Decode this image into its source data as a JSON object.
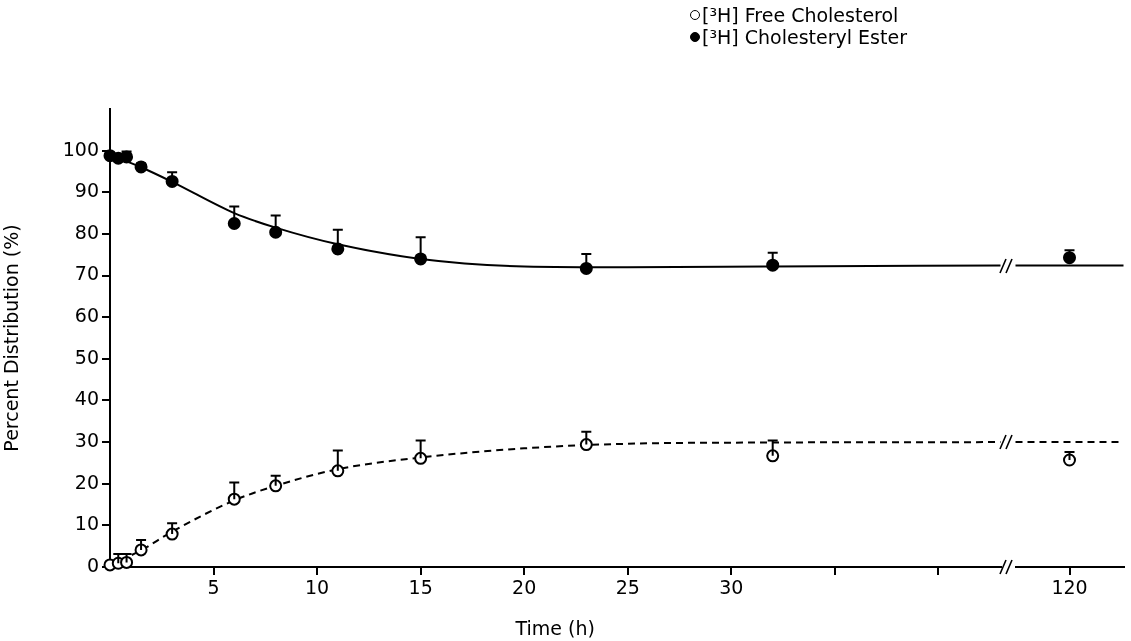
{
  "chart_data": [
    {
      "type": "scatter",
      "xlabel": "Time (h)",
      "ylabel": "Percent Distribution (%)",
      "xlim": [
        0,
        43
      ],
      "xticks": [
        5,
        10,
        15,
        20,
        25,
        30,
        {
          "value": 35,
          "label": null
        },
        {
          "value": 40,
          "label": null
        }
      ],
      "ylim": [
        0,
        110
      ],
      "yticks": [
        0,
        10,
        20,
        30,
        40,
        50,
        60,
        70,
        80,
        90,
        100
      ],
      "grid": false,
      "legend": "top right",
      "series": [
        {
          "name": "[³H] Free Cholesterol",
          "color": "#000000",
          "marker": "circle",
          "x": [
            0,
            0.4,
            0.8,
            1.5,
            3,
            6,
            8,
            11,
            15,
            23,
            32
          ],
          "values": [
            0.5,
            0.9,
            1.1,
            4.1,
            7.9,
            16.3,
            19.5,
            23.1,
            26.1,
            29.4,
            26.7
          ],
          "errors": [
            null,
            [
              0.9,
              3.1
            ],
            [
              1.1,
              3.1
            ],
            [
              4.1,
              6.5
            ],
            [
              7.9,
              10.5
            ],
            [
              16.3,
              20.3
            ],
            [
              19.5,
              21.9
            ],
            [
              23.1,
              28
            ],
            [
              26.1,
              30.4
            ],
            [
              29.4,
              32.5
            ],
            [
              26.7,
              30.4
            ]
          ]
        },
        {
          "name": "[³H] Cholesteryl Ester",
          "color": "#000000",
          "marker": "circle",
          "x": [
            0,
            0.4,
            0.8,
            1.5,
            3,
            6,
            8,
            11,
            15,
            23,
            32
          ],
          "values": [
            98.8,
            98.2,
            98.5,
            96.1,
            92.6,
            82.5,
            80.4,
            76.4,
            74,
            71.7,
            72.5
          ],
          "errors": [
            null,
            null,
            [
              98.5,
              99.8
            ],
            [
              96.1,
              96.9
            ],
            [
              92.6,
              94.8
            ],
            [
              82.5,
              86.6
            ],
            [
              80.4,
              84.4
            ],
            [
              76.4,
              81
            ],
            [
              74,
              79.2
            ],
            [
              71.7,
              75.2
            ],
            [
              72.5,
              75.5
            ]
          ]
        },
        {
          "type": "line",
          "color": "#000000",
          "marker": "none",
          "line_style": "dashed",
          "x": [
            0,
            1.5,
            3,
            6,
            8,
            11,
            15,
            20,
            25,
            32,
            43
          ],
          "values": [
            0.5,
            4,
            8.5,
            16,
            19.5,
            23.5,
            26.3,
            28.5,
            29.6,
            29.9,
            30
          ]
        },
        {
          "type": "line",
          "color": "#000000",
          "marker": "none",
          "line_style": "solid",
          "x": [
            0,
            1.5,
            3,
            6,
            8,
            11,
            15,
            20,
            25,
            32,
            43
          ],
          "values": [
            99,
            96,
            92.5,
            85,
            81.5,
            77.5,
            74,
            72.2,
            72,
            72.2,
            72.4
          ]
        }
      ]
    },
    {
      "type": "scatter",
      "categories": [
        "120"
      ],
      "ylim": [
        0,
        100
      ],
      "yticks": [
        0,
        10,
        20,
        30,
        40,
        50,
        60,
        70,
        80,
        90,
        100
      ],
      "grid": false,
      "tick_labels": "x",
      "series": [
        {
          "color": "#000000",
          "marker": "circle",
          "values": [
            25.7
          ],
          "errors": [
            [
              25.7,
              27.6
            ]
          ]
        },
        {
          "color": "#000000",
          "marker": "circle",
          "values": [
            74.3
          ],
          "errors": [
            [
              74.3,
              76.1
            ]
          ]
        }
      ],
      "ref_lines": [
        {
          "axis": "y",
          "value": 30,
          "color": "#000000",
          "line_style": "dashed"
        },
        {
          "axis": "y",
          "value": 72.4,
          "color": "#000000",
          "line_style": "solid"
        }
      ]
    }
  ]
}
